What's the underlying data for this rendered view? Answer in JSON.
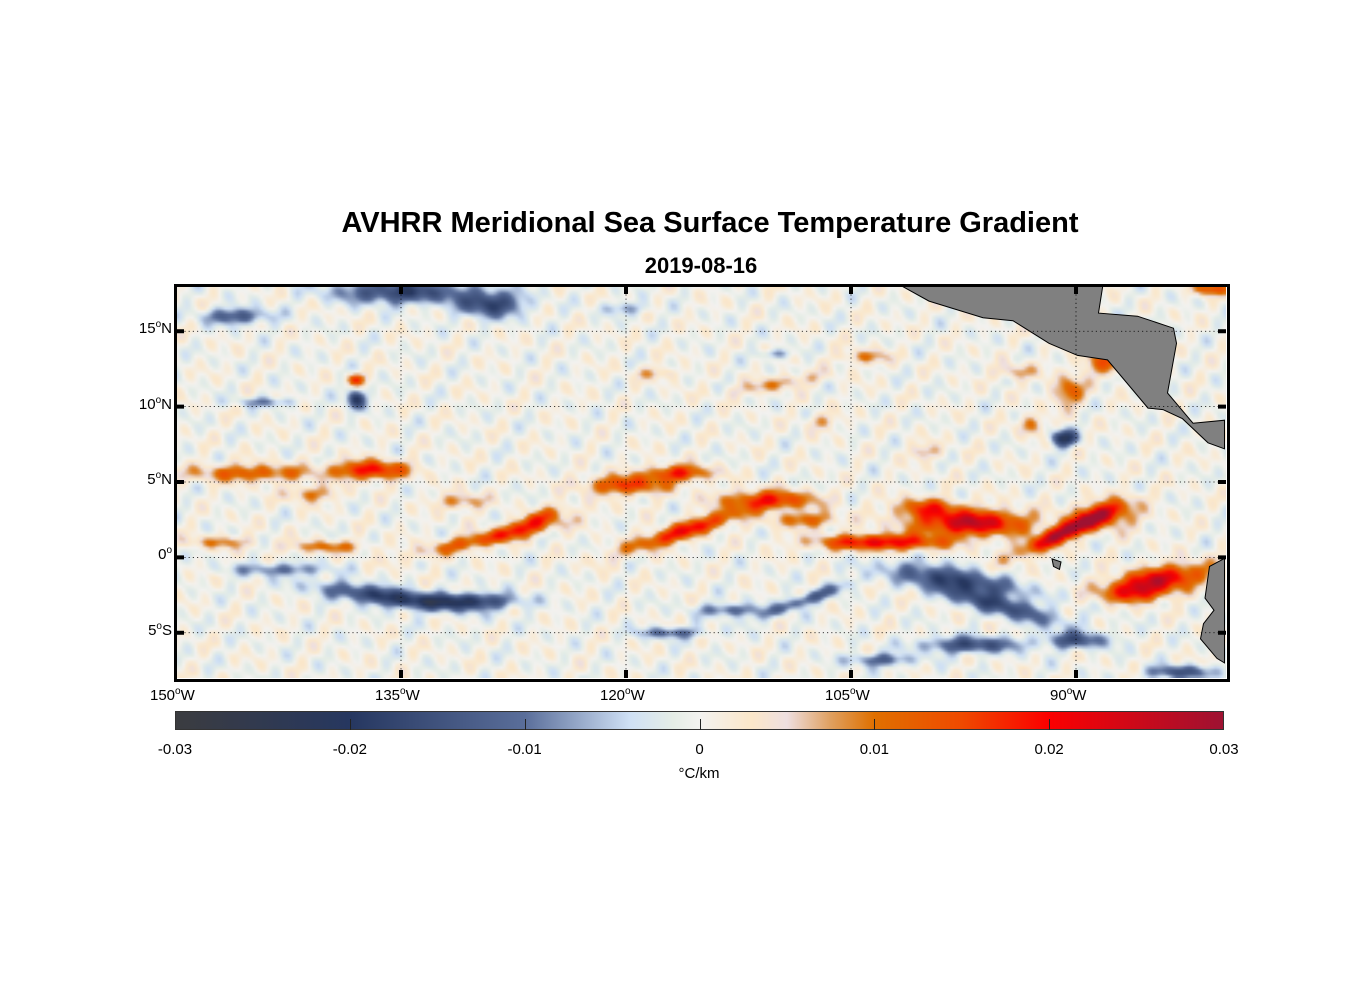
{
  "title": "AVHRR Meridional Sea Surface Temperature Gradient",
  "subtitle": "2019-08-16",
  "chart_data": {
    "type": "heatmap",
    "title": "AVHRR Meridional Sea Surface Temperature Gradient",
    "subtitle": "2019-08-16",
    "extent": {
      "lon": [
        -150,
        -80
      ],
      "lat": [
        -8,
        18
      ]
    },
    "x_ticks": [
      {
        "value": -150,
        "num": "150",
        "suffix": "W"
      },
      {
        "value": -135,
        "num": "135",
        "suffix": "W"
      },
      {
        "value": -120,
        "num": "120",
        "suffix": "W"
      },
      {
        "value": -105,
        "num": "105",
        "suffix": "W"
      },
      {
        "value": -90,
        "num": "90",
        "suffix": "W"
      }
    ],
    "y_ticks": [
      {
        "value": 15,
        "num": "15",
        "suffix": "N"
      },
      {
        "value": 10,
        "num": "10",
        "suffix": "N"
      },
      {
        "value": 5,
        "num": "5",
        "suffix": "N"
      },
      {
        "value": 0,
        "num": "0",
        "suffix": ""
      },
      {
        "value": -5,
        "num": "5",
        "suffix": "S"
      }
    ],
    "grid": true,
    "colorbar": {
      "range": [
        -0.03,
        0.03
      ],
      "ticks": [
        "-0.03",
        "-0.02",
        "-0.01",
        "0",
        "0.01",
        "0.02",
        "0.03"
      ],
      "label": "°C/km",
      "stops": [
        [
          -0.03,
          "#3b3c40"
        ],
        [
          -0.02,
          "#263760"
        ],
        [
          -0.01,
          "#5a6e9a"
        ],
        [
          -0.004,
          "#cfe0f5"
        ],
        [
          -0.0015,
          "#e5ede6"
        ],
        [
          0,
          "#f3f2f0"
        ],
        [
          0.003,
          "#fbe7c9"
        ],
        [
          0.005,
          "#eedfe0"
        ],
        [
          0.0075,
          "#e0a060"
        ],
        [
          0.01,
          "#e07000"
        ],
        [
          0.015,
          "#ef4a00"
        ],
        [
          0.02,
          "#fb0000"
        ],
        [
          0.03,
          "#9e1232"
        ]
      ]
    },
    "features_lon_lat_rlon_rlat_angle_value": [
      [
        -145,
        5.6,
        4,
        0.55,
        0,
        0.013
      ],
      [
        -137,
        5.8,
        2.3,
        0.6,
        0,
        0.02
      ],
      [
        -141,
        4.2,
        1.5,
        0.5,
        0,
        0.01
      ],
      [
        -147,
        1.0,
        2,
        0.4,
        0,
        0.009
      ],
      [
        -140,
        0.7,
        2.5,
        0.4,
        0,
        0.01
      ],
      [
        -129,
        1.3,
        4.5,
        0.5,
        12,
        0.015
      ],
      [
        -126,
        2.5,
        2,
        0.5,
        20,
        0.014
      ],
      [
        -131,
        3.7,
        1.5,
        0.5,
        0,
        0.01
      ],
      [
        -120,
        4.8,
        2.5,
        0.6,
        0,
        0.017
      ],
      [
        -116.5,
        5.6,
        2,
        0.5,
        0,
        0.018
      ],
      [
        -116,
        1.8,
        4,
        0.55,
        18,
        0.02
      ],
      [
        -110.5,
        3.8,
        3,
        0.6,
        0,
        0.017
      ],
      [
        -108,
        2.5,
        2,
        0.5,
        0,
        0.012
      ],
      [
        -103,
        1.0,
        4,
        0.5,
        0,
        0.022
      ],
      [
        -97,
        2.3,
        3.5,
        0.8,
        0,
        0.026
      ],
      [
        -100,
        3.3,
        2,
        0.6,
        0,
        0.014
      ],
      [
        -90.5,
        1.8,
        3.2,
        0.55,
        25,
        0.03
      ],
      [
        -88,
        2.8,
        2,
        0.9,
        0,
        0.013
      ],
      [
        -84.5,
        -1.5,
        3,
        0.8,
        10,
        0.024
      ],
      [
        -86,
        -2.4,
        2,
        0.6,
        0,
        0.012
      ],
      [
        -88,
        13.0,
        1.5,
        0.9,
        0,
        0.012
      ],
      [
        -90.5,
        11.0,
        1,
        0.9,
        0,
        0.013
      ],
      [
        -93,
        8.8,
        0.8,
        0.6,
        0,
        0.01
      ],
      [
        -94,
        12.3,
        1.3,
        0.5,
        0,
        0.008
      ],
      [
        -110,
        11.5,
        3,
        0.45,
        10,
        0.008
      ],
      [
        -104,
        13.3,
        1.5,
        0.45,
        0,
        0.009
      ],
      [
        -118,
        12.2,
        1.5,
        0.4,
        0,
        0.006
      ],
      [
        -100,
        7.0,
        1,
        0.5,
        0,
        0.008
      ],
      [
        -107,
        9.0,
        1,
        0.5,
        0,
        0.007
      ],
      [
        -138,
        11.8,
        0.6,
        0.4,
        0,
        0.016
      ],
      [
        -81,
        17.8,
        1.2,
        0.4,
        0,
        0.014
      ],
      [
        -136,
        -2.6,
        4,
        0.55,
        -8,
        -0.02
      ],
      [
        -130.5,
        -2.9,
        3,
        0.5,
        0,
        -0.019
      ],
      [
        -143,
        -0.8,
        3,
        0.4,
        0,
        -0.01
      ],
      [
        -98,
        -1.5,
        4,
        0.7,
        -10,
        -0.018
      ],
      [
        -95,
        -3.2,
        4,
        0.6,
        -15,
        -0.016
      ],
      [
        -97,
        -5.8,
        3,
        0.5,
        0,
        -0.016
      ],
      [
        -108,
        -2.8,
        3,
        0.4,
        20,
        -0.013
      ],
      [
        -113,
        -3.5,
        2,
        0.4,
        0,
        -0.012
      ],
      [
        -117,
        -5.0,
        2,
        0.35,
        0,
        -0.012
      ],
      [
        -90,
        -5.5,
        2,
        0.5,
        0,
        -0.014
      ],
      [
        -83,
        -7.6,
        2,
        0.4,
        0,
        -0.015
      ],
      [
        -103,
        -6.8,
        2,
        0.4,
        0,
        -0.012
      ],
      [
        -135,
        17.6,
        4,
        0.7,
        0,
        -0.018
      ],
      [
        -129,
        16.8,
        2,
        0.8,
        0,
        -0.018
      ],
      [
        -146,
        16.0,
        2,
        0.5,
        0,
        -0.014
      ],
      [
        -138,
        10.5,
        0.6,
        0.6,
        0,
        -0.02
      ],
      [
        -90.8,
        7.9,
        0.8,
        0.5,
        0,
        -0.022
      ],
      [
        -144,
        10.3,
        2,
        0.3,
        0,
        -0.008
      ],
      [
        -120,
        16.5,
        1.5,
        0.4,
        0,
        -0.007
      ],
      [
        -110,
        13.5,
        1,
        0.3,
        0,
        -0.008
      ]
    ],
    "land": [
      [
        [
          -101.8,
          18.1
        ],
        [
          -88.2,
          18.1
        ],
        [
          -88.5,
          16.2
        ],
        [
          -85.9,
          16.0
        ],
        [
          -83.5,
          15.2
        ],
        [
          -83.3,
          14.2
        ],
        [
          -83.9,
          10.9
        ],
        [
          -82.2,
          8.9
        ],
        [
          -80.1,
          9.1
        ],
        [
          -80.1,
          7.2
        ],
        [
          -81.2,
          7.6
        ],
        [
          -82.9,
          9.2
        ],
        [
          -84.2,
          9.8
        ],
        [
          -85.2,
          9.9
        ],
        [
          -87.9,
          13.1
        ],
        [
          -89.9,
          13.4
        ],
        [
          -91.8,
          14.2
        ],
        [
          -94.2,
          15.7
        ],
        [
          -96.2,
          15.9
        ],
        [
          -99.8,
          17.0
        ]
      ],
      [
        [
          -80.1,
          -0.07
        ],
        [
          -81.1,
          -0.6
        ],
        [
          -81.4,
          -2.7
        ],
        [
          -80.8,
          -3.5
        ],
        [
          -81.5,
          -4.4
        ],
        [
          -81.7,
          -5.4
        ],
        [
          -80.6,
          -6.7
        ],
        [
          -80.1,
          -7.0
        ]
      ],
      [
        [
          -91.6,
          -0.1
        ],
        [
          -91.0,
          -0.3
        ],
        [
          -91.1,
          -0.8
        ],
        [
          -91.5,
          -0.6
        ]
      ]
    ],
    "land_color": "#808080"
  }
}
